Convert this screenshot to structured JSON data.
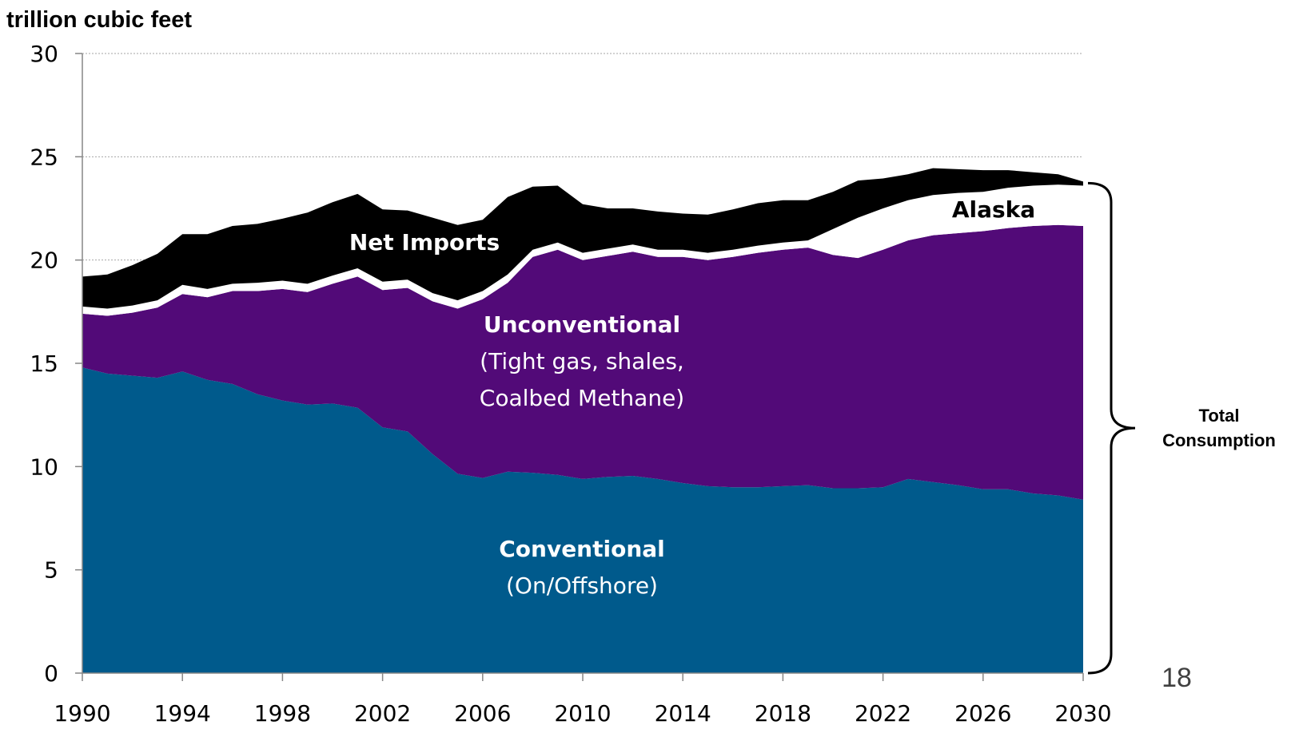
{
  "chart_data": {
    "type": "area",
    "stacked": true,
    "y_unit_label": "trillion cubic feet",
    "ylim": [
      0,
      30
    ],
    "y_ticks": [
      0,
      5,
      10,
      15,
      20,
      25,
      30
    ],
    "x_ticks": [
      1990,
      1994,
      1998,
      2002,
      2006,
      2010,
      2014,
      2018,
      2022,
      2026,
      2030
    ],
    "xlim": [
      1990,
      2030
    ],
    "grid": "horizontal dotted",
    "x": [
      1990,
      1991,
      1992,
      1993,
      1994,
      1995,
      1996,
      1997,
      1998,
      1999,
      2000,
      2001,
      2002,
      2003,
      2004,
      2005,
      2006,
      2007,
      2008,
      2009,
      2010,
      2011,
      2012,
      2013,
      2014,
      2015,
      2016,
      2017,
      2018,
      2019,
      2020,
      2021,
      2022,
      2023,
      2024,
      2025,
      2026,
      2027,
      2028,
      2029,
      2030
    ],
    "series": [
      {
        "key": "conventional",
        "color": "#005A8C",
        "values": [
          14.8,
          14.5,
          14.4,
          14.3,
          14.6,
          14.2,
          14.0,
          13.5,
          13.2,
          13.0,
          13.05,
          12.85,
          11.9,
          11.7,
          10.6,
          9.65,
          9.45,
          9.75,
          9.7,
          9.6,
          9.4,
          9.5,
          9.55,
          9.4,
          9.2,
          9.05,
          9.0,
          9.0,
          9.05,
          9.1,
          8.95,
          8.95,
          9.0,
          9.4,
          9.25,
          9.1,
          8.9,
          8.9,
          8.7,
          8.6,
          8.4
        ]
      },
      {
        "key": "unconventional",
        "color": "#520A78",
        "values": [
          2.6,
          2.8,
          3.05,
          3.4,
          3.75,
          4.0,
          4.5,
          5.0,
          5.4,
          5.45,
          5.8,
          6.35,
          6.65,
          6.95,
          7.4,
          8.0,
          8.65,
          9.15,
          10.45,
          10.9,
          10.6,
          10.7,
          10.85,
          10.75,
          10.95,
          10.95,
          11.15,
          11.35,
          11.45,
          11.5,
          11.3,
          11.15,
          11.5,
          11.55,
          11.95,
          12.2,
          12.5,
          12.65,
          12.95,
          13.1,
          13.25
        ]
      },
      {
        "key": "alaska",
        "color": "#FFFFFF",
        "values": [
          0.35,
          0.35,
          0.35,
          0.35,
          0.45,
          0.4,
          0.35,
          0.4,
          0.4,
          0.4,
          0.4,
          0.4,
          0.4,
          0.4,
          0.4,
          0.4,
          0.4,
          0.4,
          0.35,
          0.35,
          0.35,
          0.35,
          0.35,
          0.35,
          0.35,
          0.35,
          0.35,
          0.35,
          0.35,
          0.35,
          1.25,
          1.95,
          2.0,
          1.95,
          1.95,
          1.95,
          1.9,
          1.95,
          1.95,
          1.95,
          1.95
        ]
      },
      {
        "key": "net_imports",
        "color": "#000000",
        "values": [
          1.45,
          1.65,
          1.95,
          2.25,
          2.45,
          2.65,
          2.8,
          2.85,
          3.0,
          3.45,
          3.55,
          3.6,
          3.5,
          3.35,
          3.65,
          3.65,
          3.45,
          3.75,
          3.05,
          2.75,
          2.35,
          1.95,
          1.75,
          1.85,
          1.75,
          1.85,
          1.95,
          2.05,
          2.05,
          1.95,
          1.8,
          1.8,
          1.45,
          1.25,
          1.3,
          1.15,
          1.05,
          0.85,
          0.65,
          0.5,
          0.2
        ]
      }
    ],
    "annotations": {
      "net_imports": {
        "title": "Net Imports"
      },
      "alaska": {
        "title": "Alaska"
      },
      "unconventional": {
        "title": "Unconventional",
        "line1": "(Tight gas, shales,",
        "line2": "Coalbed Methane)"
      },
      "conventional": {
        "title": "Conventional",
        "line1": "(On/Offshore)"
      },
      "total": {
        "line1": "Total",
        "line2": "Consumption"
      }
    }
  },
  "slide_number": "18"
}
